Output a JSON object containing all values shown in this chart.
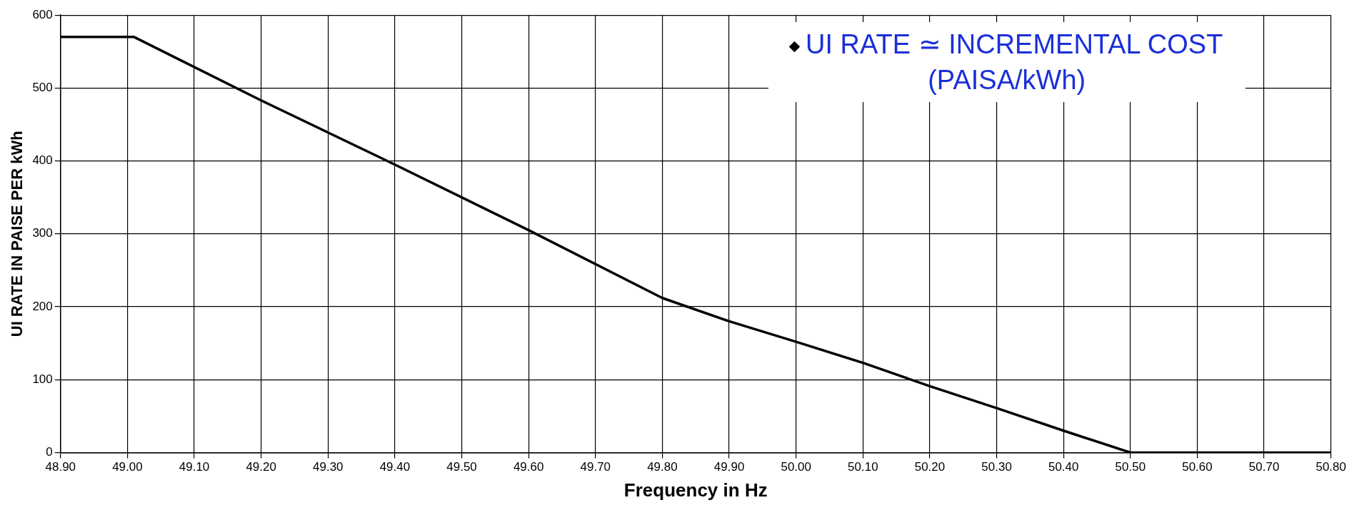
{
  "chart_data": {
    "type": "line",
    "xlabel": "Frequency in Hz",
    "ylabel": "UI RATE IN PAISE PER kWh",
    "x": [
      48.9,
      49.01,
      49.2,
      49.4,
      49.6,
      49.8,
      49.9,
      50.0,
      50.1,
      50.2,
      50.3,
      50.4,
      50.5,
      50.8
    ],
    "series": [
      {
        "name": "UI RATE ≃ INCREMENTAL COST (PAISA/kWh)",
        "color": "#000000",
        "values": [
          570,
          570,
          483,
          395,
          305,
          212,
          180,
          152,
          123,
          91,
          61,
          30,
          0,
          0
        ]
      }
    ],
    "xlim": [
      48.9,
      50.8
    ],
    "xticks": [
      {
        "value": 48.9,
        "label": "48.90"
      },
      {
        "value": 49.0,
        "label": "49.00"
      },
      {
        "value": 49.1,
        "label": "49.10"
      },
      {
        "value": 49.2,
        "label": "49.20"
      },
      {
        "value": 49.3,
        "label": "49.30"
      },
      {
        "value": 49.4,
        "label": "49.40"
      },
      {
        "value": 49.5,
        "label": "49.50"
      },
      {
        "value": 49.6,
        "label": "49.60"
      },
      {
        "value": 49.7,
        "label": "49.70"
      },
      {
        "value": 49.8,
        "label": "49.80"
      },
      {
        "value": 49.9,
        "label": "49.90"
      },
      {
        "value": 50.0,
        "label": "50.00"
      },
      {
        "value": 50.1,
        "label": "50.10"
      },
      {
        "value": 50.2,
        "label": "50.20"
      },
      {
        "value": 50.3,
        "label": "50.30"
      },
      {
        "value": 50.4,
        "label": "50.40"
      },
      {
        "value": 50.5,
        "label": "50.50"
      },
      {
        "value": 50.6,
        "label": "50.60"
      },
      {
        "value": 50.7,
        "label": "50.70"
      },
      {
        "value": 50.8,
        "label": "50.80"
      }
    ],
    "ylim": [
      0,
      600
    ],
    "yticks": [
      0,
      100,
      200,
      300,
      400,
      500,
      600
    ],
    "grid": true,
    "legend": "top right",
    "marker": "none",
    "line_style": "solid"
  }
}
